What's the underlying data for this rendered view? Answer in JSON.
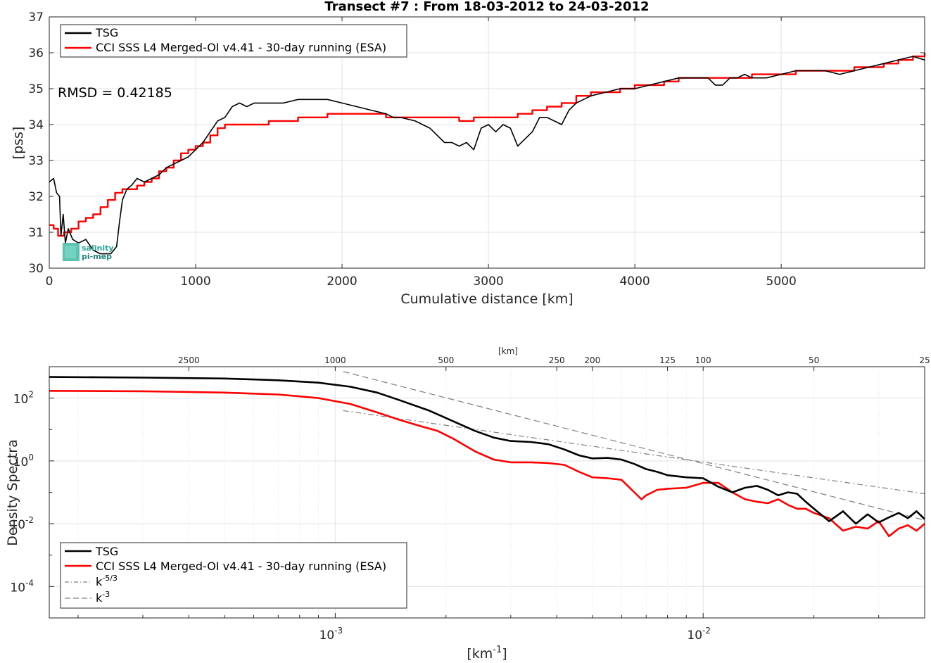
{
  "chart_data": [
    {
      "type": "line",
      "title": "Transect #7 : From 18-03-2012 to 24-03-2012",
      "xlabel": "Cumulative distance [km]",
      "ylabel": "[pss]",
      "xlim": [
        0,
        5980
      ],
      "ylim": [
        30,
        37
      ],
      "xticks": [
        0,
        1000,
        2000,
        3000,
        4000,
        5000
      ],
      "yticks": [
        30,
        31,
        32,
        33,
        34,
        35,
        36,
        37
      ],
      "grid": true,
      "legend_position": "top-left",
      "annotation": "RMSD = 0.42185",
      "logo_text": [
        "salinity",
        "pi-mep"
      ],
      "series": [
        {
          "name": "TSG",
          "color": "#000000",
          "x": [
            0,
            30,
            50,
            70,
            80,
            95,
            110,
            130,
            160,
            200,
            250,
            300,
            350,
            420,
            460,
            480,
            500,
            530,
            560,
            600,
            650,
            700,
            750,
            800,
            850,
            900,
            950,
            1000,
            1050,
            1100,
            1150,
            1200,
            1250,
            1300,
            1350,
            1400,
            1500,
            1600,
            1700,
            1800,
            1900,
            2000,
            2100,
            2200,
            2300,
            2350,
            2400,
            2500,
            2600,
            2650,
            2700,
            2750,
            2800,
            2850,
            2900,
            2950,
            3000,
            3050,
            3100,
            3150,
            3200,
            3250,
            3300,
            3350,
            3400,
            3450,
            3500,
            3550,
            3600,
            3650,
            3700,
            3800,
            3900,
            4000,
            4100,
            4200,
            4300,
            4400,
            4500,
            4550,
            4600,
            4650,
            4700,
            4750,
            4800,
            4900,
            5000,
            5100,
            5200,
            5300,
            5400,
            5500,
            5600,
            5700,
            5800,
            5900,
            5980
          ],
          "y": [
            32.4,
            32.5,
            32.1,
            32.0,
            30.9,
            31.5,
            30.7,
            31.1,
            30.8,
            30.7,
            30.8,
            30.5,
            30.4,
            30.4,
            30.6,
            31.3,
            31.9,
            32.2,
            32.3,
            32.5,
            32.4,
            32.5,
            32.6,
            32.8,
            32.9,
            33.0,
            33.1,
            33.3,
            33.5,
            33.8,
            34.1,
            34.2,
            34.5,
            34.6,
            34.5,
            34.6,
            34.6,
            34.6,
            34.7,
            34.7,
            34.7,
            34.6,
            34.5,
            34.4,
            34.3,
            34.2,
            34.2,
            34.1,
            33.9,
            33.7,
            33.5,
            33.5,
            33.4,
            33.5,
            33.3,
            33.9,
            34.0,
            33.8,
            34.0,
            33.9,
            33.4,
            33.6,
            33.8,
            34.2,
            34.2,
            34.1,
            34.0,
            34.4,
            34.6,
            34.7,
            34.8,
            34.9,
            35.0,
            35.0,
            35.1,
            35.2,
            35.3,
            35.3,
            35.3,
            35.1,
            35.1,
            35.3,
            35.3,
            35.4,
            35.3,
            35.3,
            35.4,
            35.5,
            35.5,
            35.5,
            35.4,
            35.5,
            35.6,
            35.7,
            35.8,
            35.9,
            35.8
          ]
        },
        {
          "name": "CCI SSS L4 Merged-OI v4.41 - 30-day running (ESA)",
          "color": "#ff0000",
          "x": [
            0,
            30,
            60,
            100,
            150,
            200,
            250,
            300,
            350,
            400,
            450,
            500,
            550,
            600,
            650,
            700,
            750,
            800,
            850,
            900,
            950,
            1000,
            1050,
            1100,
            1150,
            1200,
            1250,
            1300,
            1400,
            1500,
            1600,
            1700,
            1800,
            1900,
            2000,
            2100,
            2200,
            2300,
            2400,
            2500,
            2600,
            2700,
            2800,
            2900,
            3000,
            3100,
            3200,
            3300,
            3400,
            3500,
            3600,
            3700,
            3800,
            3900,
            4000,
            4100,
            4200,
            4300,
            4400,
            4500,
            4600,
            4700,
            4800,
            4900,
            5000,
            5100,
            5200,
            5300,
            5400,
            5500,
            5600,
            5700,
            5800,
            5900,
            5980
          ],
          "y": [
            31.2,
            31.1,
            30.9,
            31.0,
            31.1,
            31.3,
            31.4,
            31.5,
            31.7,
            31.9,
            32.1,
            32.2,
            32.2,
            32.3,
            32.4,
            32.5,
            32.7,
            32.8,
            33.0,
            33.2,
            33.3,
            33.4,
            33.5,
            33.7,
            33.9,
            34.0,
            34.0,
            34.0,
            34.0,
            34.1,
            34.1,
            34.2,
            34.2,
            34.3,
            34.3,
            34.3,
            34.3,
            34.2,
            34.2,
            34.2,
            34.2,
            34.2,
            34.1,
            34.2,
            34.2,
            34.2,
            34.3,
            34.4,
            34.5,
            34.6,
            34.8,
            34.9,
            34.9,
            35.0,
            35.1,
            35.1,
            35.2,
            35.3,
            35.3,
            35.3,
            35.3,
            35.3,
            35.4,
            35.4,
            35.4,
            35.5,
            35.5,
            35.5,
            35.5,
            35.6,
            35.6,
            35.7,
            35.8,
            35.9,
            36.0
          ]
        }
      ]
    },
    {
      "type": "line",
      "title": "",
      "xlabel": "[km^-1]",
      "ylabel": "Density Spectra",
      "xscale": "log",
      "yscale": "log",
      "xlim": [
        0.000167,
        0.04
      ],
      "ylim": [
        1e-05,
        1000
      ],
      "xticks": [
        0.001,
        0.01
      ],
      "xtick_labels": [
        "10^-3",
        "10^-2"
      ],
      "yticks": [
        0.0001,
        0.01,
        1,
        100
      ],
      "ytick_labels": [
        "10^-4",
        "10^-2",
        "10^0",
        "10^2"
      ],
      "top_axis_label": "[km]",
      "top_axis_ticks": [
        2500,
        1000,
        500,
        250,
        200,
        125,
        100,
        50,
        25
      ],
      "grid": true,
      "legend_position": "bottom-left",
      "series": [
        {
          "name": "TSG",
          "color": "#000000",
          "x": [
            0.000167,
            0.0003,
            0.0005,
            0.0007,
            0.0009,
            0.0011,
            0.0013,
            0.0015,
            0.0018,
            0.0021,
            0.0024,
            0.0027,
            0.003,
            0.0034,
            0.0038,
            0.0042,
            0.0046,
            0.005,
            0.0055,
            0.006,
            0.0065,
            0.007,
            0.0075,
            0.008,
            0.009,
            0.01,
            0.011,
            0.012,
            0.013,
            0.014,
            0.015,
            0.016,
            0.017,
            0.018,
            0.019,
            0.02,
            0.022,
            0.024,
            0.026,
            0.028,
            0.03,
            0.032,
            0.034,
            0.036,
            0.038,
            0.04
          ],
          "y": [
            470,
            450,
            420,
            370,
            310,
            230,
            150,
            85,
            40,
            18,
            9,
            5.5,
            4.3,
            4.0,
            3.4,
            2.3,
            1.5,
            1.2,
            1.25,
            1.1,
            0.8,
            0.55,
            0.45,
            0.35,
            0.3,
            0.28,
            0.15,
            0.1,
            0.14,
            0.16,
            0.12,
            0.08,
            0.1,
            0.09,
            0.05,
            0.03,
            0.012,
            0.025,
            0.01,
            0.02,
            0.011,
            0.016,
            0.022,
            0.015,
            0.025,
            0.014
          ]
        },
        {
          "name": "CCI SSS L4 Merged-OI v4.41 - 30-day running (ESA)",
          "color": "#ff0000",
          "x": [
            0.000167,
            0.0003,
            0.0005,
            0.0007,
            0.0009,
            0.0011,
            0.0013,
            0.0015,
            0.0017,
            0.0019,
            0.0021,
            0.0024,
            0.0027,
            0.003,
            0.0034,
            0.0038,
            0.0042,
            0.0046,
            0.005,
            0.0055,
            0.006,
            0.0065,
            0.0068,
            0.007,
            0.0075,
            0.008,
            0.009,
            0.01,
            0.011,
            0.012,
            0.013,
            0.014,
            0.015,
            0.016,
            0.017,
            0.018,
            0.019,
            0.02,
            0.022,
            0.024,
            0.026,
            0.028,
            0.03,
            0.032,
            0.034,
            0.036,
            0.038,
            0.04
          ],
          "y": [
            170,
            165,
            150,
            130,
            100,
            65,
            35,
            20,
            13,
            9,
            5,
            2,
            1.1,
            0.9,
            0.9,
            0.85,
            0.75,
            0.45,
            0.3,
            0.28,
            0.25,
            0.1,
            0.06,
            0.08,
            0.12,
            0.13,
            0.14,
            0.2,
            0.2,
            0.1,
            0.06,
            0.05,
            0.045,
            0.06,
            0.04,
            0.03,
            0.03,
            0.022,
            0.015,
            0.006,
            0.008,
            0.007,
            0.012,
            0.004,
            0.007,
            0.009,
            0.006,
            0.01
          ]
        },
        {
          "name": "k^-5/3",
          "color": "#808080",
          "style": "dashdot",
          "x": [
            0.00105,
            0.04
          ],
          "y": [
            40,
            0.09
          ]
        },
        {
          "name": "k^-3",
          "color": "#808080",
          "style": "dashed",
          "x": [
            0.00105,
            0.04
          ],
          "y": [
            700,
            0.013
          ]
        }
      ]
    }
  ],
  "labels": {
    "minus_sign": "-",
    "exp_53": "-5/3",
    "exp_3": "-3",
    "exp_1": "-1",
    "ten": "10",
    "k": "k",
    "xlabel2_pre": "[km",
    "xlabel2_post": "]"
  }
}
